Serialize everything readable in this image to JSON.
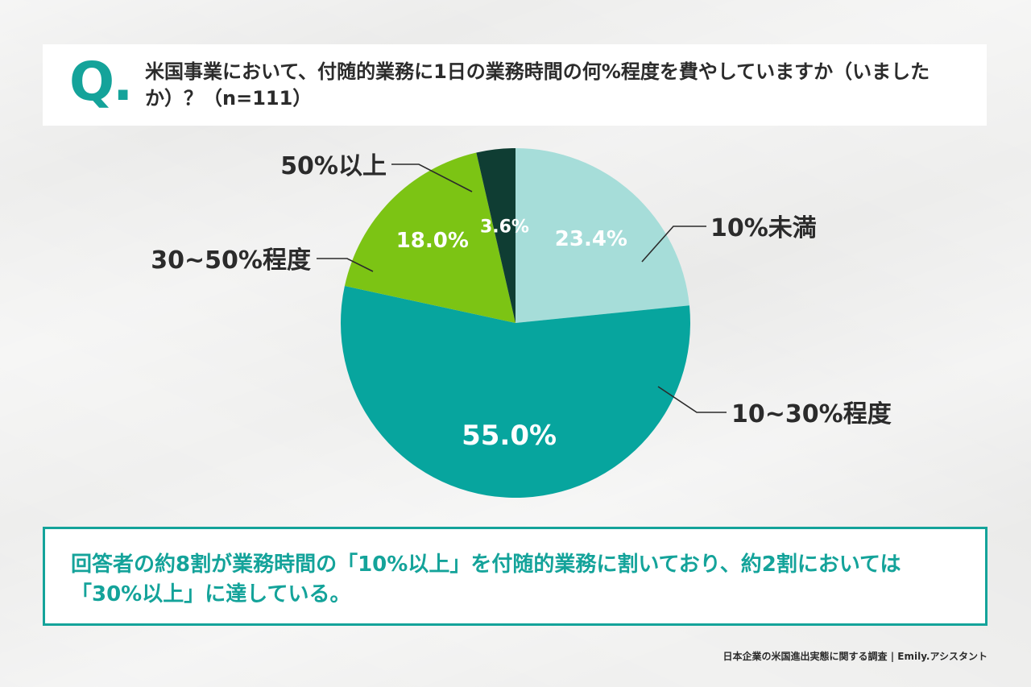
{
  "question": {
    "mark": "Q",
    "mark_dot": ".",
    "text": "米国事業において、付随的業務に1日の業務時間の何%程度を費やしていますか（いましたか）？（n=111）"
  },
  "colors": {
    "accent": "#14a39a",
    "text": "#2b2b2b",
    "background": "#f1f1f0"
  },
  "chart_data": {
    "type": "pie",
    "title": "",
    "start_angle_deg": 0,
    "direction": "clockwise",
    "slices": [
      {
        "label": "10%未満",
        "value": 23.4,
        "value_label": "23.4%",
        "color": "#a6ddd9",
        "value_color": "#ffffff"
      },
      {
        "label": "10~30%程度",
        "value": 55.0,
        "value_label": "55.0%",
        "color": "#07a59e",
        "value_color": "#ffffff"
      },
      {
        "label": "30~50%程度",
        "value": 18.0,
        "value_label": "18.0%",
        "color": "#7cc414",
        "value_color": "#ffffff"
      },
      {
        "label": "50%以上",
        "value": 3.6,
        "value_label": "3.6%",
        "color": "#0f3d33",
        "value_color": "#ffffff"
      }
    ]
  },
  "summary": {
    "text": "回答者の約8割が業務時間の「10%以上」を付随的業務に割いており、約2割においては「30%以上」に達している。"
  },
  "footer": {
    "credit": "日本企業の米国進出実態に関する調査 | Emily.アシスタント"
  }
}
